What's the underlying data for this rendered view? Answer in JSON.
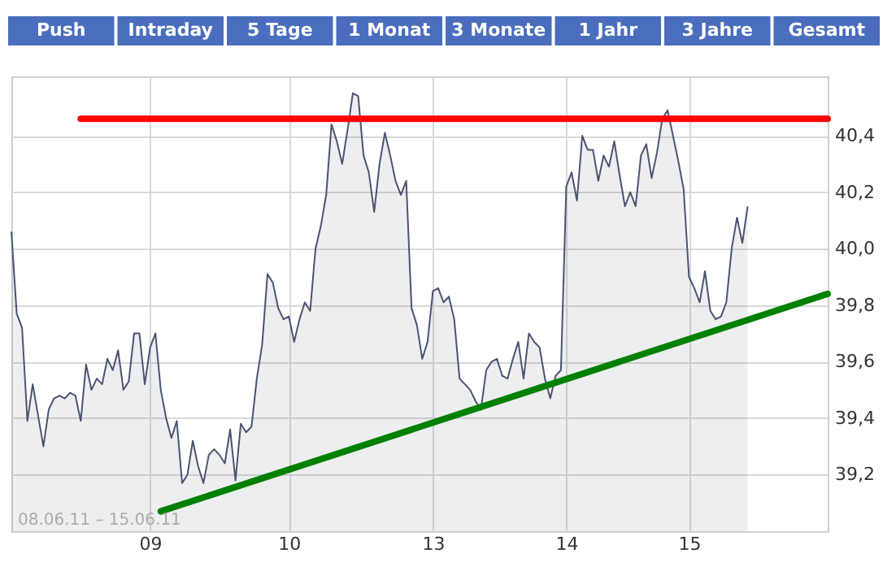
{
  "chart_data": {
    "type": "line",
    "annotations": [
      "08.06.11 – 15.06.11",
      "Push",
      "Intraday",
      "5 Tage",
      "1 Monat",
      "3 Monate",
      "1 Jahr",
      "3 Jahre",
      "Gesamt"
    ],
    "categories": [
      null,
      null,
      null,
      null,
      null,
      null,
      null,
      null,
      null,
      null,
      null,
      null,
      null,
      null,
      null,
      null,
      null,
      null,
      null,
      null,
      null,
      null,
      null,
      null,
      null,
      null,
      "09",
      null,
      null,
      null,
      null,
      null,
      null,
      null,
      null,
      null,
      null,
      null,
      null,
      null,
      null,
      null,
      null,
      null,
      null,
      null,
      null,
      null,
      null,
      null,
      null,
      null,
      "10",
      null,
      null,
      null,
      null,
      null,
      null,
      null,
      null,
      null,
      null,
      null,
      null,
      null,
      null,
      null,
      null,
      null,
      null,
      null,
      null,
      null,
      null,
      null,
      null,
      null,
      null,
      "13",
      null,
      null,
      null,
      null,
      null,
      null,
      null,
      null,
      null,
      null,
      null,
      null,
      null,
      null,
      null,
      null,
      null,
      null,
      null,
      null,
      null,
      null,
      null,
      null,
      "14",
      null,
      null,
      null,
      null,
      null,
      null,
      null,
      null,
      null,
      null,
      null,
      null,
      null,
      null,
      null,
      null,
      null,
      null,
      null,
      null,
      null,
      null,
      "15",
      null,
      null,
      null,
      null,
      null,
      null,
      null,
      null,
      null,
      null,
      null,
      null,
      null,
      null,
      null,
      null,
      null,
      null,
      null,
      null,
      null,
      null,
      null,
      null,
      null,
      null
    ],
    "ylim": [
      39.0,
      40.61
    ],
    "yticks": [
      {
        "value": 39.2,
        "label": "39,2"
      },
      {
        "value": 39.4,
        "label": "39,4"
      },
      {
        "value": 39.6,
        "label": "39,6"
      },
      {
        "value": 39.8,
        "label": "39,8"
      },
      {
        "value": 40.0,
        "label": "40,0"
      },
      {
        "value": 40.2,
        "label": "40,2"
      },
      {
        "value": 40.4,
        "label": "40,4"
      }
    ],
    "grid": true,
    "marker": "none",
    "series": [
      {
        "type": "area",
        "color": "#4a5470",
        "values": [
          40.06,
          39.77,
          39.72,
          39.39,
          39.52,
          39.41,
          39.3,
          39.43,
          39.47,
          39.48,
          39.47,
          39.49,
          39.48,
          39.39,
          39.59,
          39.5,
          39.54,
          39.52,
          39.61,
          39.57,
          39.64,
          39.5,
          39.53,
          39.7,
          39.7,
          39.52,
          39.65,
          39.7,
          39.5,
          39.4,
          39.33,
          39.39,
          39.17,
          39.2,
          39.32,
          39.23,
          39.17,
          39.27,
          39.29,
          39.27,
          39.24,
          39.36,
          39.18,
          39.38,
          39.35,
          39.37,
          39.54,
          39.66,
          39.91,
          39.88,
          39.79,
          39.75,
          39.76,
          39.67,
          39.75,
          39.81,
          39.78,
          40.0,
          40.08,
          40.19,
          40.44,
          40.38,
          40.3,
          40.42,
          40.55,
          40.54,
          40.33,
          40.27,
          40.13,
          40.3,
          40.41,
          40.33,
          40.24,
          40.19,
          40.24,
          39.79,
          39.73,
          39.61,
          39.67,
          39.85,
          39.86,
          39.81,
          39.83,
          39.75,
          39.54,
          39.52,
          39.5,
          39.46,
          39.43,
          39.57,
          39.6,
          39.61,
          39.55,
          39.54,
          39.61,
          39.67,
          39.54,
          39.7,
          39.67,
          39.65,
          39.54,
          39.47,
          39.55,
          39.57,
          40.22,
          40.27,
          40.17,
          40.4,
          40.35,
          40.35,
          40.24,
          40.33,
          40.29,
          40.38,
          40.26,
          40.15,
          40.2,
          40.15,
          40.33,
          40.37,
          40.25,
          40.34,
          40.46,
          40.49,
          40.4,
          40.31,
          40.21,
          39.9,
          39.86,
          39.81,
          39.92,
          39.78,
          39.75,
          39.76,
          39.81,
          40.0,
          40.11,
          40.02,
          40.15,
          null,
          null,
          null,
          null,
          null,
          null,
          null,
          null,
          null,
          null,
          null,
          null,
          null,
          null,
          null
        ]
      },
      {
        "color": "#ff0000",
        "values": [
          null,
          null,
          null,
          null,
          null,
          null,
          null,
          null,
          null,
          null,
          null,
          null,
          null,
          40.46,
          null,
          null,
          null,
          null,
          null,
          null,
          null,
          null,
          null,
          null,
          null,
          null,
          null,
          null,
          null,
          null,
          null,
          null,
          null,
          null,
          null,
          null,
          null,
          null,
          null,
          null,
          null,
          null,
          null,
          null,
          null,
          null,
          null,
          null,
          null,
          null,
          null,
          null,
          null,
          null,
          null,
          null,
          null,
          null,
          null,
          null,
          null,
          null,
          null,
          null,
          null,
          null,
          null,
          null,
          null,
          null,
          null,
          null,
          null,
          null,
          null,
          null,
          null,
          null,
          null,
          null,
          null,
          null,
          null,
          null,
          null,
          null,
          null,
          null,
          null,
          null,
          null,
          null,
          null,
          null,
          null,
          null,
          null,
          null,
          null,
          null,
          null,
          null,
          null,
          null,
          null,
          null,
          null,
          null,
          null,
          null,
          null,
          null,
          null,
          null,
          null,
          null,
          null,
          null,
          null,
          null,
          null,
          null,
          null,
          null,
          null,
          null,
          null,
          null,
          null,
          null,
          null,
          null,
          null,
          null,
          null,
          null,
          null,
          null,
          null,
          null,
          null,
          null,
          null,
          null,
          null,
          null,
          null,
          null,
          null,
          null,
          null,
          null,
          null,
          40.46
        ]
      },
      {
        "color": "#008000",
        "values": [
          null,
          null,
          null,
          null,
          null,
          null,
          null,
          null,
          null,
          null,
          null,
          null,
          null,
          null,
          null,
          null,
          null,
          null,
          null,
          null,
          null,
          null,
          null,
          null,
          null,
          null,
          null,
          null,
          39.07,
          null,
          null,
          null,
          null,
          null,
          null,
          null,
          null,
          null,
          null,
          null,
          null,
          null,
          null,
          null,
          null,
          null,
          null,
          null,
          null,
          null,
          null,
          null,
          null,
          null,
          null,
          null,
          null,
          null,
          null,
          null,
          null,
          null,
          null,
          null,
          null,
          null,
          null,
          null,
          null,
          null,
          null,
          null,
          null,
          null,
          null,
          null,
          null,
          null,
          null,
          null,
          null,
          null,
          null,
          null,
          null,
          null,
          null,
          null,
          null,
          null,
          null,
          null,
          null,
          null,
          null,
          null,
          null,
          null,
          null,
          null,
          null,
          null,
          null,
          null,
          null,
          null,
          null,
          null,
          null,
          null,
          null,
          null,
          null,
          null,
          null,
          null,
          null,
          null,
          null,
          null,
          null,
          null,
          null,
          null,
          null,
          null,
          null,
          null,
          null,
          null,
          null,
          null,
          null,
          null,
          null,
          null,
          null,
          null,
          null,
          null,
          null,
          null,
          null,
          null,
          null,
          null,
          null,
          null,
          null,
          null,
          null,
          null,
          null,
          39.84
        ]
      }
    ]
  }
}
